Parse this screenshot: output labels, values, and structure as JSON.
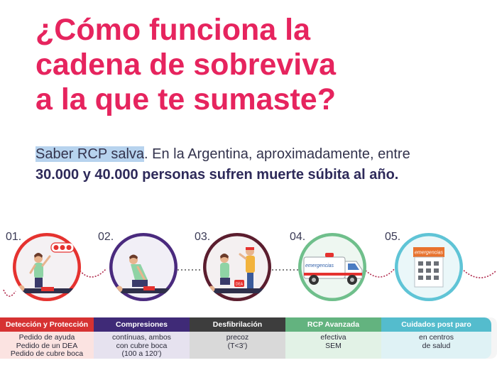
{
  "title": {
    "line1": "¿Cómo funciona la",
    "line2": "cadena de sobreviva",
    "line3": "a la que te sumaste?"
  },
  "intro": {
    "highlight": "Saber RCP salva",
    "rest": ". En la Argentina, aproximadamente, entre",
    "bold": "30.000 y 40.000 personas sufren muerte súbita al año."
  },
  "steps": [
    {
      "num": "01.",
      "head": "Detección y Protección",
      "lines": [
        "Pedido de ayuda",
        "Pedido de un DEA",
        "Pedido de cubre boca"
      ],
      "ring": "#e5322f",
      "head_bg": "#d63232",
      "body_bg": "#fbe3e1"
    },
    {
      "num": "02.",
      "head": "Compresiones",
      "lines": [
        "contínuas, ambos",
        "con cubre boca",
        "(100 a 120’)"
      ],
      "ring": "#4a2a7e",
      "head_bg": "#3f2a77",
      "body_bg": "#e6e2ef"
    },
    {
      "num": "03.",
      "head": "Desfibrilación",
      "lines": [
        "precoz",
        "(T<3’)"
      ],
      "ring": "#5b1d2e",
      "head_bg": "#3d3d3d",
      "body_bg": "#d9d9d9"
    },
    {
      "num": "04.",
      "head": "RCP Avanzada",
      "lines": [
        "efectiva",
        "SEM"
      ],
      "ring": "#6fbf8b",
      "head_bg": "#63b37f",
      "body_bg": "#e2f2e6"
    },
    {
      "num": "05.",
      "head": "Cuidados post paro",
      "lines": [
        "en centros",
        "de salud"
      ],
      "ring": "#5fc4d6",
      "head_bg": "#54bccd",
      "body_bg": "#dff2f5"
    }
  ],
  "icons": {
    "ambulance_text": "emergencias",
    "building_text": "emergencias",
    "aed_label": "DEA"
  },
  "colors": {
    "title": "#e6245e",
    "intro_bold": "#2e2a5a",
    "highlight": "#b7d3ee",
    "chain_link": "#b02a4d"
  }
}
